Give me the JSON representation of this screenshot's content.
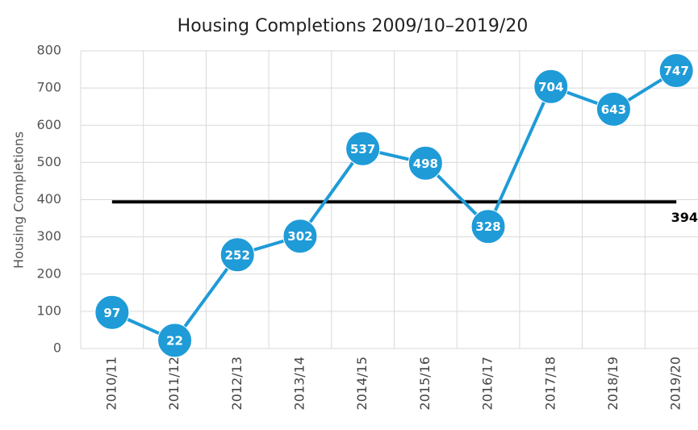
{
  "chart_data": {
    "type": "line",
    "title": "Housing Completions 2009/10–2019/20",
    "y_label": "Housing Completions",
    "categories": [
      "2010/11",
      "2011/12",
      "2012/13",
      "2013/14",
      "2014/15",
      "2015/16",
      "2016/17",
      "2017/18",
      "2018/19",
      "2019/20"
    ],
    "values": [
      97,
      22,
      252,
      302,
      537,
      498,
      328,
      704,
      643,
      747
    ],
    "color": "#1f9bd7",
    "reference_line": {
      "value": 394,
      "color": "#000000"
    },
    "ylim": [
      0,
      800
    ],
    "yticks": [
      0,
      100,
      200,
      300,
      400,
      500,
      600,
      700,
      800
    ],
    "grid": true
  }
}
